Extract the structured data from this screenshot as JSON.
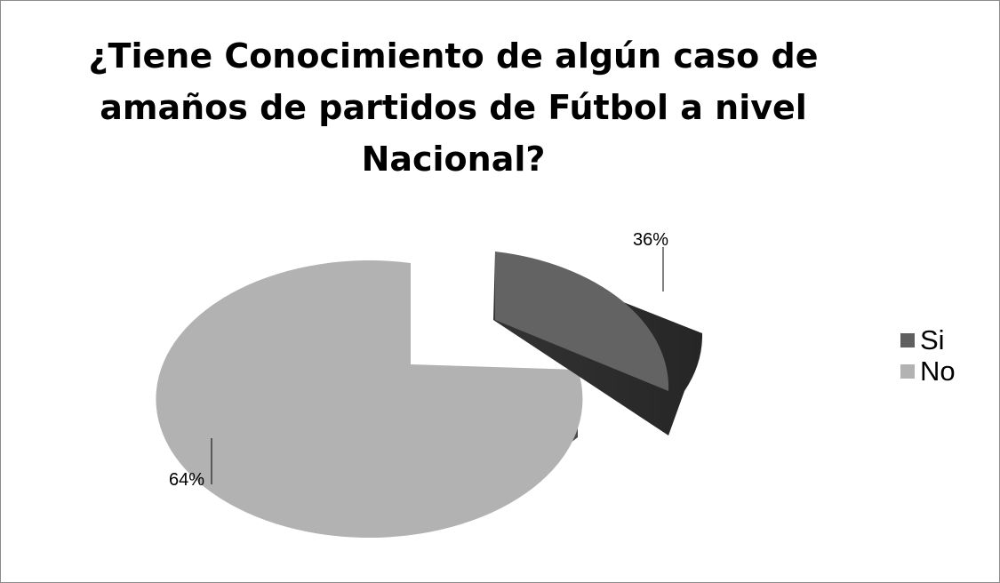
{
  "chart_data": {
    "type": "pie",
    "style": "3d-exploded",
    "title": "¿Tiene Conocimiento de algún caso de amaños de partidos de Fútbol a nivel Nacional?",
    "title_lines": [
      "¿Tiene Conocimiento de algún caso de",
      "amaños de partidos de Fútbol a nivel",
      "Nacional?"
    ],
    "legend_position": "right",
    "slices": [
      {
        "name": "Si",
        "value": 36,
        "label": "36%",
        "top_color": "#636363",
        "side_color": "#2b2b2b",
        "legend_color": "#5f5f5f"
      },
      {
        "name": "No",
        "value": 64,
        "label": "64%",
        "top_color": "#b2b2b2",
        "side_color": "#8f8f8f",
        "legend_color": "#b2b2b2"
      }
    ]
  }
}
